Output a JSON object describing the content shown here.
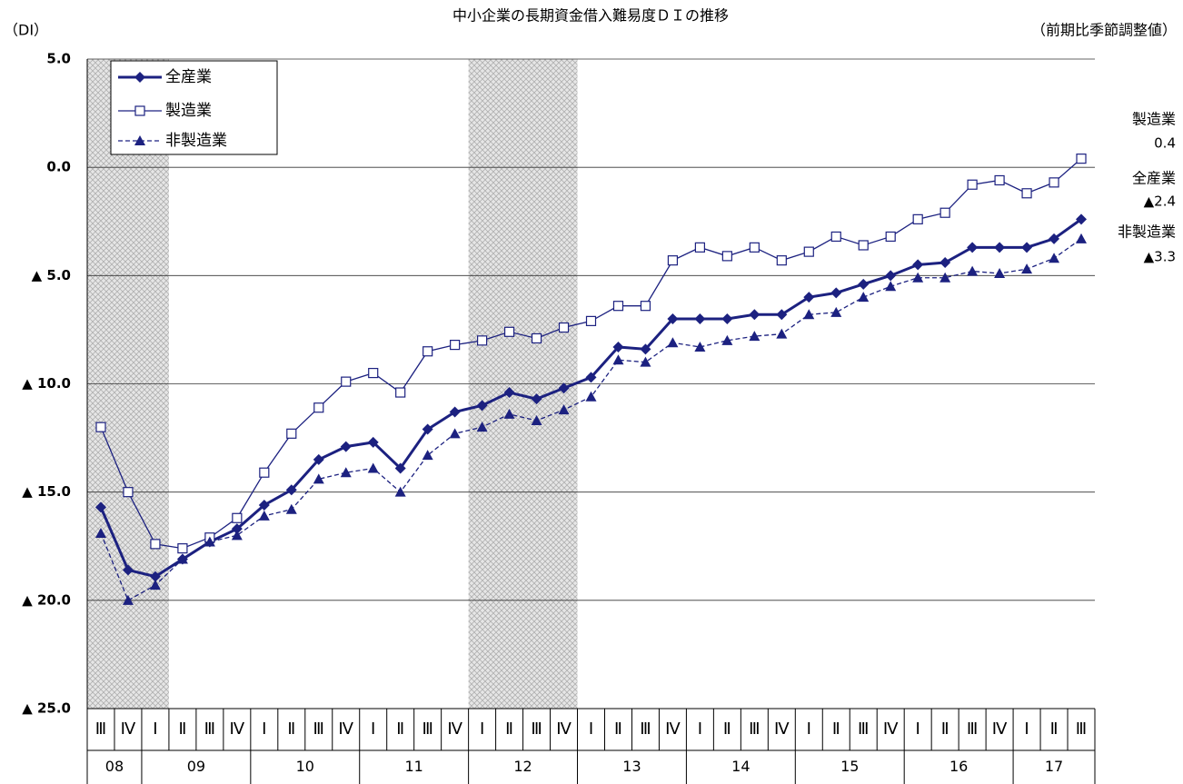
{
  "chart_data": {
    "type": "line",
    "title": "中小企業の長期資金借入難易度ＤＩの推移",
    "y_label": "（DI）",
    "subtitle": "（前期比季節調整値）",
    "categories": [
      [
        "08",
        "Ⅲ"
      ],
      [
        "08",
        "Ⅳ"
      ],
      [
        "09",
        "Ⅰ"
      ],
      [
        "09",
        "Ⅱ"
      ],
      [
        "09",
        "Ⅲ"
      ],
      [
        "09",
        "Ⅳ"
      ],
      [
        "10",
        "Ⅰ"
      ],
      [
        "10",
        "Ⅱ"
      ],
      [
        "10",
        "Ⅲ"
      ],
      [
        "10",
        "Ⅳ"
      ],
      [
        "11",
        "Ⅰ"
      ],
      [
        "11",
        "Ⅱ"
      ],
      [
        "11",
        "Ⅲ"
      ],
      [
        "11",
        "Ⅳ"
      ],
      [
        "12",
        "Ⅰ"
      ],
      [
        "12",
        "Ⅱ"
      ],
      [
        "12",
        "Ⅲ"
      ],
      [
        "12",
        "Ⅳ"
      ],
      [
        "13",
        "Ⅰ"
      ],
      [
        "13",
        "Ⅱ"
      ],
      [
        "13",
        "Ⅲ"
      ],
      [
        "13",
        "Ⅳ"
      ],
      [
        "14",
        "Ⅰ"
      ],
      [
        "14",
        "Ⅱ"
      ],
      [
        "14",
        "Ⅲ"
      ],
      [
        "14",
        "Ⅳ"
      ],
      [
        "15",
        "Ⅰ"
      ],
      [
        "15",
        "Ⅱ"
      ],
      [
        "15",
        "Ⅲ"
      ],
      [
        "15",
        "Ⅳ"
      ],
      [
        "16",
        "Ⅰ"
      ],
      [
        "16",
        "Ⅱ"
      ],
      [
        "16",
        "Ⅲ"
      ],
      [
        "16",
        "Ⅳ"
      ],
      [
        "17",
        "Ⅰ"
      ],
      [
        "17",
        "Ⅱ"
      ],
      [
        "17",
        "Ⅲ"
      ]
    ],
    "ylim": [
      -25,
      5
    ],
    "yticks": [
      {
        "value": 5,
        "label": "5.0"
      },
      {
        "value": 0,
        "label": "0.0"
      },
      {
        "value": -5,
        "label": "▲ 5.0"
      },
      {
        "value": -10,
        "label": "▲ 10.0"
      },
      {
        "value": -15,
        "label": "▲ 15.0"
      },
      {
        "value": -20,
        "label": "▲ 20.0"
      },
      {
        "value": -25,
        "label": "▲ 25.0"
      }
    ],
    "grid": true,
    "shaded": [
      {
        "from": 0,
        "to": 2
      },
      {
        "from": 14,
        "to": 17
      }
    ],
    "legend": "upper left",
    "series": [
      {
        "name": "全産業",
        "color": "#1c2180",
        "marker": "diamond",
        "line_width": 3,
        "dashed": false,
        "last_value_label": "▲2.4",
        "values": [
          -15.7,
          -18.6,
          -18.9,
          -18.1,
          -17.3,
          -16.7,
          -15.6,
          -14.9,
          -13.5,
          -12.9,
          -12.7,
          -13.9,
          -12.1,
          -11.3,
          -11.0,
          -10.4,
          -10.7,
          -10.2,
          -9.7,
          -8.3,
          -8.4,
          -7.0,
          -7.0,
          -7.0,
          -6.8,
          -6.8,
          -6.0,
          -5.8,
          -5.4,
          -5.0,
          -4.5,
          -4.4,
          -3.7,
          -3.7,
          -3.7,
          -3.3,
          -2.4
        ]
      },
      {
        "name": "製造業",
        "color": "#1c2180",
        "marker": "square",
        "line_width": 1.3,
        "dashed": false,
        "last_value_label": "0.4",
        "values": [
          -12.0,
          -15.0,
          -17.4,
          -17.6,
          -17.1,
          -16.2,
          -14.1,
          -12.3,
          -11.1,
          -9.9,
          -9.5,
          -10.4,
          -8.5,
          -8.2,
          -8.0,
          -7.6,
          -7.9,
          -7.4,
          -7.1,
          -6.4,
          -6.4,
          -4.3,
          -3.7,
          -4.1,
          -3.7,
          -4.3,
          -3.9,
          -3.2,
          -3.6,
          -3.2,
          -2.4,
          -2.1,
          -0.8,
          -0.6,
          -1.2,
          -0.7,
          0.4
        ]
      },
      {
        "name": "非製造業",
        "color": "#1c2180",
        "marker": "triangle",
        "line_width": 1.3,
        "dashed": true,
        "last_value_label": "▲3.3",
        "values": [
          -16.9,
          -20.0,
          -19.3,
          -18.1,
          -17.3,
          -17.0,
          -16.1,
          -15.8,
          -14.4,
          -14.1,
          -13.9,
          -15.0,
          -13.3,
          -12.3,
          -12.0,
          -11.4,
          -11.7,
          -11.2,
          -10.6,
          -8.9,
          -9.0,
          -8.1,
          -8.3,
          -8.0,
          -7.8,
          -7.7,
          -6.8,
          -6.7,
          -6.0,
          -5.5,
          -5.1,
          -5.1,
          -4.8,
          -4.9,
          -4.7,
          -4.2,
          -3.3
        ]
      }
    ]
  }
}
